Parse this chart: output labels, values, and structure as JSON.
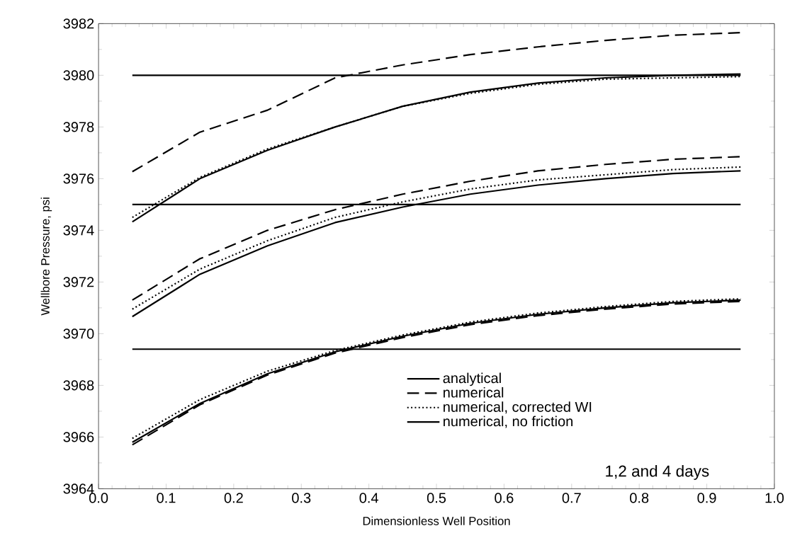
{
  "chart_data": {
    "type": "line",
    "xlabel": "Dimensionless Well Position",
    "ylabel": "Wellbore Pressure, psi",
    "x": [
      0.05,
      0.15,
      0.25,
      0.35,
      0.45,
      0.55,
      0.65,
      0.75,
      0.85,
      0.95
    ],
    "series": [
      {
        "name": "analytical",
        "color": "#000000",
        "line_style": "solid",
        "values": [
          3974.33,
          3976.0,
          3977.1,
          3978.0,
          3978.8,
          3979.35,
          3979.7,
          3979.9,
          3980.0,
          3980.05
        ]
      },
      {
        "name": "numerical",
        "color": "#000000",
        "line_style": "dashed",
        "values": [
          3976.27,
          3977.8,
          3978.65,
          3979.9,
          3980.4,
          3980.8,
          3981.1,
          3981.35,
          3981.55,
          3981.65
        ]
      },
      {
        "name": "numerical, corrected WI",
        "color": "#000000",
        "line_style": "dotted",
        "values": [
          3974.5,
          3976.05,
          3977.15,
          3978.0,
          3978.8,
          3979.3,
          3979.65,
          3979.85,
          3979.9,
          3979.95
        ]
      },
      {
        "name": "numerical, no friction",
        "color": "#000000",
        "line_style": "solid",
        "values": [
          3980,
          3980,
          3980,
          3980,
          3980,
          3980,
          3980,
          3980,
          3980,
          3980
        ]
      },
      {
        "color": "#000000",
        "line_style": "solid",
        "values": [
          3970.66,
          3972.3,
          3973.4,
          3974.3,
          3974.9,
          3975.4,
          3975.75,
          3976.0,
          3976.2,
          3976.3
        ]
      },
      {
        "color": "#000000",
        "line_style": "dashed",
        "values": [
          3971.3,
          3972.9,
          3974.0,
          3974.8,
          3975.4,
          3975.9,
          3976.3,
          3976.55,
          3976.75,
          3976.85
        ]
      },
      {
        "color": "#000000",
        "line_style": "dotted",
        "values": [
          3970.95,
          3972.5,
          3973.6,
          3974.5,
          3975.1,
          3975.6,
          3975.95,
          3976.15,
          3976.35,
          3976.45
        ]
      },
      {
        "color": "#000000",
        "line_style": "solid",
        "values": [
          3975,
          3975,
          3975,
          3975,
          3975,
          3975,
          3975,
          3975,
          3975,
          3975
        ]
      },
      {
        "color": "#000000",
        "line_style": "solid",
        "values": [
          3965.8,
          3967.3,
          3968.45,
          3969.3,
          3969.9,
          3970.4,
          3970.75,
          3971.0,
          3971.2,
          3971.3
        ]
      },
      {
        "color": "#000000",
        "line_style": "dashed",
        "values": [
          3965.7,
          3967.25,
          3968.4,
          3969.25,
          3969.85,
          3970.35,
          3970.7,
          3970.95,
          3971.15,
          3971.25
        ]
      },
      {
        "color": "#000000",
        "line_style": "dotted",
        "values": [
          3965.95,
          3967.45,
          3968.55,
          3969.35,
          3969.95,
          3970.45,
          3970.8,
          3971.05,
          3971.25,
          3971.35
        ]
      },
      {
        "color": "#000000",
        "line_style": "solid",
        "values": [
          3969.4,
          3969.4,
          3969.4,
          3969.4,
          3969.4,
          3969.4,
          3969.4,
          3969.4,
          3969.4,
          3969.4
        ]
      }
    ],
    "xlim": [
      0,
      1
    ],
    "xticks": [
      {
        "value": 0,
        "label": "0.0"
      },
      0.1,
      0.2,
      0.3,
      0.4,
      0.5,
      0.6,
      0.7,
      0.8,
      0.9,
      {
        "value": 1,
        "label": "1.0"
      }
    ],
    "ylim": [
      3964,
      3982
    ],
    "yticks": [
      3964,
      3966,
      3968,
      3970,
      3972,
      3974,
      3976,
      3978,
      3980,
      3982
    ],
    "grid": false,
    "legend": "bottom",
    "marker": "none",
    "annotations": [
      "1,2 and 4 days"
    ]
  }
}
